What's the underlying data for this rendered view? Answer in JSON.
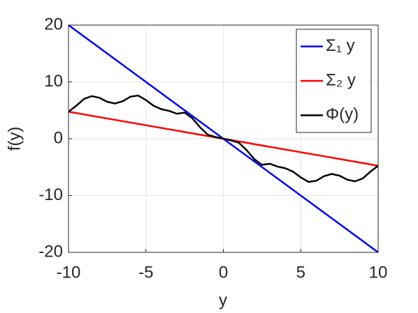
{
  "chart_data": {
    "type": "line",
    "xlabel": "y",
    "ylabel": "f(y)",
    "xlim": [
      -10,
      10
    ],
    "ylim": [
      -20,
      20
    ],
    "xticks": [
      -10,
      -5,
      0,
      5,
      10
    ],
    "yticks": [
      -20,
      -10,
      0,
      10,
      20
    ],
    "grid": true,
    "legend": "top-right",
    "series": [
      {
        "name": "Σ₁ y",
        "color": "#0000ff",
        "x": [
          -10,
          10
        ],
        "values": [
          20,
          -20
        ]
      },
      {
        "name": "Σ₂ y",
        "color": "#ff0000",
        "x": [
          -10,
          10
        ],
        "values": [
          4.75,
          -4.75
        ]
      },
      {
        "name": "Φ(y)",
        "color": "#000000",
        "x": [
          -10,
          -9.5,
          -9,
          -8.5,
          -8,
          -7.5,
          -7,
          -6.5,
          -6,
          -5.5,
          -5,
          -4.5,
          -4,
          -3.5,
          -3,
          -2.5,
          -2,
          -1.5,
          -1,
          -0.5,
          0,
          0.5,
          1,
          1.5,
          2,
          2.5,
          3,
          3.5,
          4,
          4.5,
          5,
          5.5,
          6,
          6.5,
          7,
          7.5,
          8,
          8.5,
          9,
          9.5,
          10
        ],
        "values": [
          4.75,
          5.8,
          7.0,
          7.5,
          7.2,
          6.5,
          6.2,
          6.6,
          7.4,
          7.6,
          6.8,
          5.8,
          5.2,
          4.9,
          4.4,
          4.6,
          3.6,
          2.0,
          0.7,
          0.3,
          0,
          -0.3,
          -0.7,
          -2.0,
          -3.6,
          -4.6,
          -4.4,
          -4.9,
          -5.2,
          -5.8,
          -6.8,
          -7.6,
          -7.4,
          -6.6,
          -6.2,
          -6.5,
          -7.2,
          -7.5,
          -7.0,
          -5.8,
          -4.75
        ]
      }
    ]
  }
}
